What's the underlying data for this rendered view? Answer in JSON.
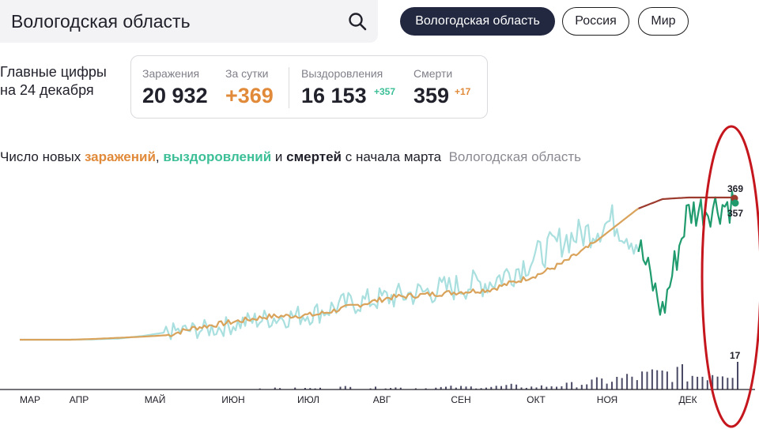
{
  "search": {
    "value": "Вологодская область"
  },
  "regions": [
    "Вологодская область",
    "Россия",
    "Мир"
  ],
  "summary": {
    "label_line1": "Главные цифры",
    "label_line2": "на 24 декабря",
    "infections_label": "Заражения",
    "infections_value": "20 932",
    "daily_label": "За сутки",
    "daily_value": "+369",
    "recoveries_label": "Выздоровления",
    "recoveries_value": "16 153",
    "recoveries_inc": "+357",
    "deaths_label": "Смерти",
    "deaths_value": "359",
    "deaths_inc": "+17"
  },
  "chart_title": {
    "p1": "Число новых ",
    "infections": "заражений",
    "p2": ", ",
    "recoveries": "выздоровлений",
    "p3": " и ",
    "deaths": "смертей",
    "p4": " с начала марта",
    "region": "Вологодская область"
  },
  "colors": {
    "infections": "#d9a35c",
    "infections_recent": "#9c3a2e",
    "recoveries": "#a9e0df",
    "recoveries_recent": "#1f9b6e",
    "deaths": "#4a4a66",
    "annotation": "#c4161c"
  },
  "chart_data": {
    "type": "line",
    "x_labels": [
      "МАР",
      "АПР",
      "МАЙ",
      "ИЮН",
      "ИЮЛ",
      "АВГ",
      "СЕН",
      "ОКТ",
      "НОЯ",
      "ДЕК"
    ],
    "series": [
      {
        "name": "заражений",
        "end_value": 369,
        "values": [
          0,
          0,
          0,
          2,
          5,
          8,
          12,
          30,
          40,
          50,
          60,
          62,
          65,
          80,
          95,
          110,
          115,
          120,
          125,
          130,
          150,
          170,
          200,
          240,
          290,
          340,
          365,
          369,
          369,
          369
        ]
      },
      {
        "name": "выздоровлений",
        "end_value": 357,
        "values": [
          0,
          0,
          0,
          1,
          3,
          10,
          20,
          25,
          30,
          45,
          55,
          60,
          70,
          90,
          100,
          110,
          120,
          130,
          140,
          150,
          180,
          220,
          260,
          280,
          310,
          250,
          70,
          330,
          345,
          357
        ]
      },
      {
        "name": "смертей",
        "end_value": 17,
        "values": [
          0,
          0,
          0,
          0,
          0,
          0,
          1,
          1,
          1,
          1,
          2,
          1,
          2,
          1,
          1,
          2,
          2,
          2,
          3,
          2,
          3,
          4,
          6,
          8,
          10,
          12,
          14,
          11,
          15,
          17
        ]
      }
    ],
    "annotations": [
      "369",
      "357",
      "17"
    ]
  }
}
